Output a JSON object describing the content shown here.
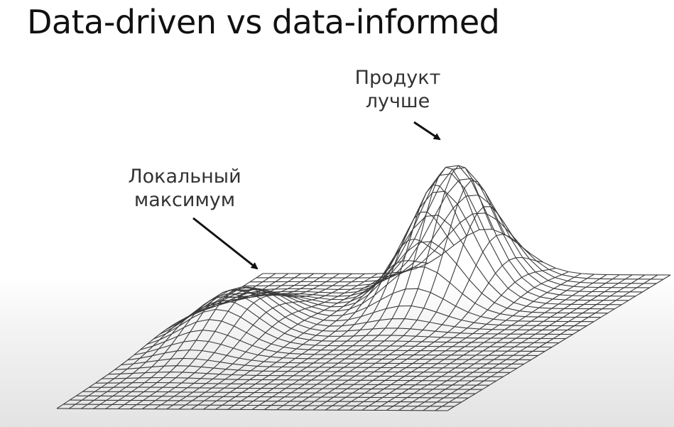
{
  "slide": {
    "title": "Data-driven vs data-informed"
  },
  "annotations": {
    "peak": {
      "line1": "Продукт",
      "line2": "лучше"
    },
    "local": {
      "line1": "Локальный",
      "line2": "максимум"
    }
  },
  "colors": {
    "mesh_line": "#3a3a3a",
    "text": "#333333",
    "title": "#111111"
  }
}
